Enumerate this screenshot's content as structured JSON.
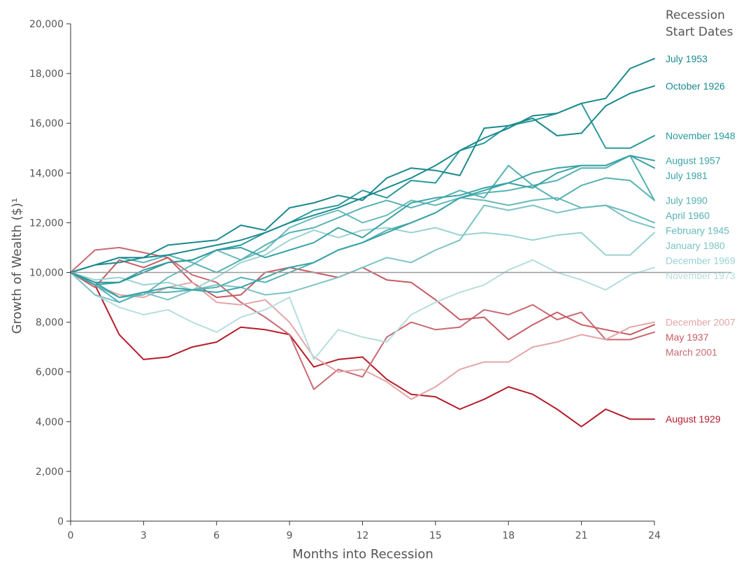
{
  "chart_data": {
    "type": "line",
    "xlabel": "Months into Recession",
    "ylabel": "Growth of Wealth ($)¹",
    "legend_title": [
      "Recession",
      "Start Dates"
    ],
    "xlim": [
      0,
      24
    ],
    "ylim": [
      0,
      20000
    ],
    "x_ticks": [
      0,
      3,
      6,
      9,
      12,
      15,
      18,
      21,
      24
    ],
    "y_ticks": [
      0,
      2000,
      4000,
      6000,
      8000,
      10000,
      12000,
      14000,
      16000,
      18000,
      20000
    ],
    "y_tick_labels": [
      "0",
      "2,000",
      "4,000",
      "6,000",
      "8,000",
      "10,000",
      "12,000",
      "14,000",
      "16,000",
      "18,000",
      "20,000"
    ],
    "x_tick_labels": [
      "0",
      "3",
      "6",
      "9",
      "12",
      "15",
      "18",
      "21",
      "24"
    ],
    "reference_line": 10000,
    "grid": false,
    "legend": "right",
    "x": [
      0,
      1,
      2,
      3,
      4,
      5,
      6,
      7,
      8,
      9,
      10,
      11,
      12,
      13,
      14,
      15,
      16,
      17,
      18,
      19,
      20,
      21,
      22,
      23,
      24
    ],
    "series": [
      {
        "name": "July 1953",
        "color": "#1b8a8e",
        "label_value": 18600,
        "values": [
          10000,
          10300,
          10400,
          10600,
          10700,
          10900,
          11100,
          11300,
          11600,
          12000,
          12300,
          12600,
          13000,
          13400,
          13800,
          14300,
          14900,
          15400,
          15800,
          16300,
          16400,
          16800,
          17000,
          18200,
          18600
        ]
      },
      {
        "name": "October 1926",
        "color": "#1b8a8e",
        "label_value": 17500,
        "values": [
          10000,
          10300,
          10600,
          10600,
          11100,
          11200,
          11300,
          11900,
          11700,
          12600,
          12800,
          13100,
          12900,
          13800,
          14200,
          14100,
          13900,
          15800,
          15900,
          16200,
          15500,
          15600,
          16700,
          17200,
          17500
        ]
      },
      {
        "name": "November 1948",
        "color": "#2b999b",
        "label_value": 15500,
        "values": [
          10000,
          9600,
          9600,
          10000,
          10400,
          10500,
          10900,
          11100,
          11600,
          12000,
          12500,
          12700,
          13300,
          13000,
          13700,
          13600,
          14900,
          15200,
          15900,
          16100,
          16400,
          16800,
          15000,
          15000,
          15500
        ]
      },
      {
        "name": "August 1957",
        "color": "#3aa3a6",
        "label_value": 14500,
        "values": [
          10000,
          9500,
          9600,
          10100,
          10400,
          10500,
          10900,
          11000,
          10600,
          10900,
          11200,
          11800,
          11400,
          12100,
          12800,
          13000,
          13100,
          13400,
          13600,
          14000,
          14200,
          14300,
          14300,
          14700,
          14500
        ]
      },
      {
        "name": "July 1981",
        "color": "#3aa3a6",
        "label_value": 14200,
        "values": [
          10000,
          9600,
          9000,
          9200,
          9400,
          9300,
          9200,
          9400,
          9800,
          10200,
          10400,
          10900,
          11200,
          11600,
          12000,
          12400,
          13000,
          13300,
          13600,
          13400,
          14000,
          14300,
          14300,
          14700,
          14200
        ]
      },
      {
        "name": "July 1990",
        "color": "#55b1b3",
        "label_value": 12900,
        "values": [
          10000,
          10300,
          10600,
          10400,
          10700,
          10400,
          10000,
          10500,
          11100,
          11600,
          11800,
          12200,
          12600,
          12900,
          12600,
          12900,
          13300,
          13000,
          14300,
          13500,
          13700,
          14200,
          14200,
          14700,
          12900
        ]
      },
      {
        "name": "April 1960",
        "color": "#55b1b3",
        "label_value": 12900,
        "values": [
          10000,
          9500,
          8800,
          9200,
          9200,
          9300,
          9400,
          9800,
          9600,
          10000,
          10400,
          10900,
          11200,
          11700,
          12000,
          12400,
          13000,
          13200,
          13300,
          13500,
          12900,
          13500,
          13800,
          13700,
          12900
        ]
      },
      {
        "name": "February 1945",
        "color": "#68b9bb",
        "label_value": 12000,
        "values": [
          10000,
          9500,
          9000,
          9100,
          9800,
          10300,
          10900,
          10500,
          10900,
          11800,
          12200,
          12500,
          12000,
          12300,
          12900,
          12700,
          13000,
          12900,
          12700,
          12900,
          13000,
          12600,
          12700,
          12400,
          12000
        ]
      },
      {
        "name": "January 1980",
        "color": "#7cc3c5",
        "label_value": 11800,
        "values": [
          10000,
          9100,
          8800,
          9200,
          8900,
          9300,
          9500,
          9400,
          9100,
          9200,
          9500,
          9800,
          10200,
          10600,
          10400,
          10900,
          11300,
          12700,
          12500,
          12700,
          12400,
          12600,
          12700,
          12100,
          11800
        ]
      },
      {
        "name": "December 1969",
        "color": "#9ad2d3",
        "label_value": 11600,
        "values": [
          10000,
          9700,
          9800,
          9500,
          9600,
          9300,
          9800,
          10400,
          10700,
          11300,
          11700,
          11400,
          11700,
          11800,
          11600,
          11800,
          11500,
          11600,
          11500,
          11300,
          11500,
          11600,
          10700,
          10700,
          11600
        ]
      },
      {
        "name": "November 1973",
        "color": "#b5dede",
        "label_value": 10200,
        "values": [
          10000,
          9100,
          8600,
          8300,
          8500,
          8000,
          7600,
          8200,
          8500,
          9000,
          6500,
          7700,
          7400,
          7200,
          8300,
          8800,
          9200,
          9500,
          10100,
          10500,
          10000,
          9700,
          9300,
          9900,
          10200
        ]
      },
      {
        "name": "December 2007",
        "color": "#e3a6a8",
        "label_value": 8000,
        "values": [
          10000,
          9500,
          9100,
          9000,
          9400,
          9600,
          8800,
          8700,
          8900,
          8000,
          6600,
          6000,
          6100,
          5600,
          4900,
          5400,
          6100,
          6400,
          6400,
          7000,
          7200,
          7500,
          7300,
          7800,
          8000
        ]
      },
      {
        "name": "May 1937",
        "color": "#c85a63",
        "label_value": 7900,
        "values": [
          10000,
          9400,
          10500,
          10200,
          10600,
          9600,
          9000,
          9100,
          10000,
          10200,
          10000,
          9800,
          10200,
          9700,
          9600,
          8900,
          8100,
          8200,
          7300,
          7900,
          8400,
          7900,
          7700,
          7500,
          7900
        ]
      },
      {
        "name": "March 2001",
        "color": "#c86a72",
        "label_value": 7600,
        "values": [
          10000,
          10900,
          11000,
          10800,
          10600,
          9900,
          9600,
          8800,
          8200,
          7500,
          5300,
          6100,
          5800,
          7400,
          8000,
          7700,
          7800,
          8500,
          8300,
          8700,
          8100,
          8400,
          7300,
          7300,
          7600
        ]
      },
      {
        "name": "August 1929",
        "color": "#b51d2a",
        "label_value": 4100,
        "values": [
          10000,
          9500,
          7500,
          6500,
          6600,
          7000,
          7200,
          7800,
          7700,
          7500,
          6200,
          6500,
          6600,
          5700,
          5100,
          5000,
          4500,
          4900,
          5400,
          5100,
          4500,
          3800,
          4500,
          4100,
          4100
        ]
      }
    ]
  }
}
